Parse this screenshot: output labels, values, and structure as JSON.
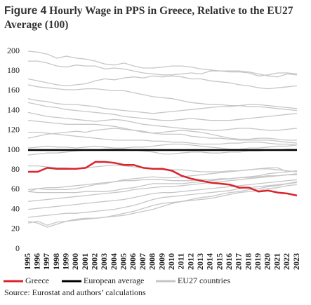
{
  "figure_label": "Figure 4",
  "chart_data": {
    "type": "line",
    "title": "Hourly Wage in PPS in Greece, Relative to the EU27 Average (100)",
    "source": "Source: Eurostat and authors’ calculations",
    "categories": [
      "1995",
      "1996",
      "1997",
      "1998",
      "1999",
      "2000",
      "2001",
      "2002",
      "2003",
      "2004",
      "2005",
      "2006",
      "2007",
      "2008",
      "2009",
      "2010",
      "2011",
      "2012",
      "2013",
      "2014",
      "2015",
      "2016",
      "2017",
      "2018",
      "2019",
      "2020",
      "2021",
      "2022",
      "2023"
    ],
    "ylim": [
      0,
      200
    ],
    "yticks": [
      0,
      20,
      40,
      60,
      80,
      100,
      120,
      140,
      160,
      180,
      200
    ],
    "series": [
      {
        "name": "Greece",
        "color": "#d9252b",
        "values": [
          78,
          78,
          82,
          81,
          81,
          81,
          82,
          88,
          88,
          87,
          85,
          85,
          82,
          81,
          81,
          79,
          74,
          71,
          69,
          67,
          66,
          65,
          62,
          62,
          58,
          59,
          57,
          56,
          54
        ]
      },
      {
        "name": "European average",
        "color": "#000000",
        "values": [
          100,
          100,
          100,
          100,
          100,
          100,
          100,
          100,
          100,
          100,
          100,
          100,
          100,
          100,
          100,
          100,
          100,
          100,
          100,
          100,
          100,
          100,
          100,
          100,
          100,
          100,
          100,
          100,
          100
        ]
      }
    ],
    "background_series": {
      "name": "EU27 countries",
      "color": "#c6c6c6",
      "lines": [
        [
          200,
          199,
          197,
          193,
          195,
          193,
          192,
          190,
          187,
          186,
          188,
          185,
          183,
          183,
          184,
          185,
          185,
          184,
          182,
          181,
          180,
          180,
          180,
          179,
          177,
          175,
          174,
          177,
          176
        ],
        [
          190,
          190,
          188,
          185,
          184,
          186,
          185,
          185,
          182,
          183,
          182,
          180,
          178,
          177,
          176,
          176,
          177,
          178,
          177,
          180,
          180,
          179,
          179,
          178,
          175,
          176,
          178,
          178,
          177
        ],
        [
          172,
          170,
          168,
          166,
          165,
          166,
          167,
          170,
          172,
          171,
          173,
          174,
          173,
          175,
          174,
          175,
          174,
          172,
          172,
          170,
          169,
          168,
          166,
          165,
          163,
          162,
          163,
          164,
          165
        ],
        [
          166,
          164,
          163,
          162,
          161,
          161,
          162,
          162,
          161,
          160,
          160,
          158,
          156,
          154,
          153,
          152,
          150,
          148,
          147,
          146,
          146,
          145,
          145,
          144,
          144,
          143,
          142,
          141,
          140
        ],
        [
          152,
          150,
          149,
          147,
          146,
          146,
          145,
          144,
          142,
          141,
          140,
          139,
          138,
          137,
          138,
          139,
          140,
          141,
          142,
          143,
          144,
          144,
          145,
          146,
          146,
          145,
          144,
          143,
          142
        ],
        [
          148,
          146,
          144,
          143,
          141,
          140,
          139,
          138,
          137,
          136,
          134,
          133,
          132,
          131,
          130,
          130,
          131,
          132,
          131,
          130,
          130,
          130,
          131,
          132,
          133,
          134,
          135,
          136,
          137
        ],
        [
          138,
          136,
          134,
          133,
          132,
          131,
          130,
          129,
          130,
          131,
          130,
          128,
          126,
          125,
          124,
          123,
          122,
          121,
          121,
          120,
          120,
          121,
          122,
          122,
          121,
          120,
          120,
          121,
          122
        ],
        [
          130,
          129,
          128,
          127,
          126,
          126,
          126,
          126,
          125,
          124,
          122,
          120,
          118,
          117,
          118,
          119,
          120,
          119,
          118,
          116,
          114,
          112,
          111,
          111,
          112,
          112,
          111,
          110,
          110
        ],
        [
          112,
          114,
          116,
          117,
          118,
          119,
          118,
          120,
          121,
          122,
          121,
          120,
          119,
          117,
          116,
          116,
          116,
          114,
          113,
          112,
          112,
          111,
          110,
          110,
          110,
          110,
          109,
          108,
          107
        ],
        [
          118,
          118,
          117,
          116,
          115,
          114,
          113,
          112,
          111,
          110,
          110,
          110,
          110,
          109,
          109,
          108,
          108,
          107,
          106,
          106,
          106,
          107,
          107,
          108,
          108,
          107,
          106,
          106,
          105
        ],
        [
          102,
          103,
          104,
          103,
          103,
          102,
          103,
          104,
          103,
          102,
          102,
          103,
          103,
          104,
          105,
          106,
          106,
          105,
          104,
          103,
          102,
          101,
          101,
          102,
          102,
          103,
          104,
          104,
          105
        ],
        [
          95,
          96,
          97,
          97,
          98,
          99,
          100,
          100,
          101,
          101,
          101,
          100,
          99,
          98,
          96,
          96,
          97,
          98,
          98,
          97,
          97,
          98,
          98,
          99,
          99,
          100,
          100,
          101,
          101
        ],
        [
          84,
          84,
          83,
          82,
          82,
          81,
          82,
          83,
          84,
          85,
          84,
          83,
          82,
          81,
          80,
          80,
          80,
          79,
          78,
          78,
          78,
          79,
          79,
          80,
          81,
          81,
          80,
          79,
          78
        ],
        [
          58,
          61,
          60,
          60,
          60,
          61,
          63,
          65,
          66,
          68,
          70,
          71,
          72,
          73,
          72,
          72,
          73,
          74,
          75,
          76,
          77,
          78,
          79,
          80,
          81,
          82,
          82,
          78,
          79
        ],
        [
          58,
          57,
          57,
          57,
          57,
          57,
          58,
          58,
          58,
          59,
          61,
          62,
          64,
          66,
          66,
          66,
          66,
          67,
          68,
          69,
          70,
          71,
          72,
          72,
          73,
          74,
          74,
          75,
          75
        ],
        [
          60,
          61,
          62,
          62,
          63,
          64,
          65,
          66,
          67,
          68,
          69,
          69,
          70,
          70,
          70,
          69,
          69,
          69,
          70,
          70,
          71,
          71,
          72,
          73,
          74,
          76,
          77,
          78,
          79
        ],
        [
          48,
          49,
          50,
          51,
          52,
          53,
          54,
          55,
          56,
          57,
          58,
          60,
          61,
          62,
          63,
          63,
          64,
          65,
          66,
          67,
          68,
          69,
          70,
          71,
          72,
          73,
          74,
          75,
          76
        ],
        [
          40,
          41,
          42,
          43,
          44,
          45,
          46,
          47,
          48,
          49,
          50,
          52,
          54,
          56,
          57,
          57,
          58,
          59,
          60,
          61,
          62,
          63,
          64,
          65,
          66,
          67,
          68,
          69,
          70
        ],
        [
          32,
          33,
          34,
          35,
          36,
          36,
          37,
          38,
          39,
          40,
          42,
          44,
          47,
          50,
          52,
          53,
          54,
          55,
          56,
          57,
          58,
          59,
          61,
          62,
          63,
          64,
          65,
          66,
          67
        ],
        [
          26,
          28,
          24,
          27,
          28,
          29,
          30,
          31,
          32,
          33,
          34,
          36,
          38,
          40,
          43,
          46,
          48,
          50,
          52,
          53,
          55,
          57,
          58,
          60,
          61,
          63,
          64,
          66,
          68
        ],
        [
          28,
          26,
          22,
          25,
          28,
          30,
          31,
          31,
          32,
          34,
          36,
          38,
          41,
          44,
          46,
          47,
          48,
          49,
          50,
          51,
          53,
          55,
          57,
          58,
          59,
          61,
          62,
          64,
          65
        ]
      ]
    }
  }
}
